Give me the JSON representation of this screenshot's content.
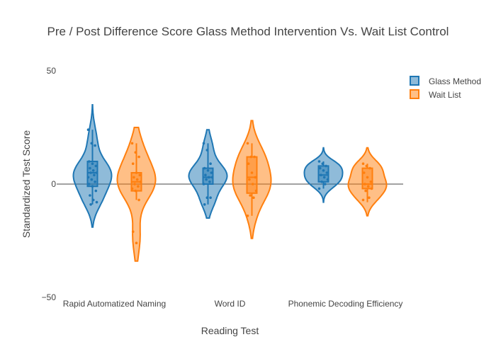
{
  "chart_data": {
    "type": "violin",
    "title": "Pre / Post Difference Score Glass Method Intervention Vs. Wait List Control",
    "xlabel": "Reading Test",
    "ylabel": "Standardized Test Score",
    "ylim": [
      -50,
      50
    ],
    "yticks": [
      50,
      0,
      -50
    ],
    "ytick_labels": [
      "50",
      "0",
      "−50"
    ],
    "categories": [
      "Rapid Automatized Naming",
      "Word ID",
      "Phonemic Decoding Efficiency"
    ],
    "legend_position": "top-right",
    "zero_line": true,
    "series": [
      {
        "name": "Glass Method",
        "color": "#1f77b4",
        "groups": [
          {
            "category": "Rapid Automatized Naming",
            "range": [
              -19,
              35
            ],
            "box": {
              "q1": -1,
              "median": 5,
              "q3": 10,
              "whisker_low": -9,
              "whisker_high": 24
            },
            "points": [
              24,
              18,
              17,
              10,
              9,
              8,
              7,
              6,
              5,
              5,
              4,
              3,
              2,
              1,
              0,
              -1,
              -3,
              -5,
              -7,
              -8,
              -9
            ]
          },
          {
            "category": "Word ID",
            "range": [
              -15,
              24
            ],
            "box": {
              "q1": 0,
              "median": 3,
              "q3": 7,
              "whisker_low": -9,
              "whisker_high": 18
            },
            "points": [
              18,
              15,
              9,
              7,
              6,
              5,
              4,
              3,
              3,
              2,
              1,
              0,
              -6,
              -6,
              -9
            ]
          },
          {
            "category": "Phonemic Decoding Efficiency",
            "range": [
              -8,
              16
            ],
            "box": {
              "q1": 1,
              "median": 4,
              "q3": 8,
              "whisker_low": -2,
              "whisker_high": 10
            },
            "points": [
              10,
              9,
              8,
              7,
              6,
              5,
              4,
              3,
              2,
              1,
              0,
              -2
            ]
          }
        ]
      },
      {
        "name": "Wait List",
        "color": "#ff7f0e",
        "groups": [
          {
            "category": "Rapid Automatized Naming",
            "range": [
              -34,
              25
            ],
            "box": {
              "q1": -3,
              "median": 1,
              "q3": 5,
              "whisker_low": -7,
              "whisker_high": 18
            },
            "points": [
              18,
              14,
              12,
              9,
              5,
              4,
              3,
              2,
              1,
              0,
              -1,
              -2,
              -3,
              -7,
              -21,
              -26
            ]
          },
          {
            "category": "Word ID",
            "range": [
              -24,
              28
            ],
            "box": {
              "q1": -4,
              "median": 3,
              "q3": 12,
              "whisker_low": -14,
              "whisker_high": 18
            },
            "points": [
              18,
              12,
              12,
              9,
              5,
              3,
              2,
              0,
              -3,
              -5,
              -6,
              -14
            ]
          },
          {
            "category": "Phonemic Decoding Efficiency",
            "range": [
              -14,
              16
            ],
            "box": {
              "q1": -2,
              "median": 0,
              "q3": 7,
              "whisker_low": -8,
              "whisker_high": 9
            },
            "points": [
              9,
              8,
              7,
              5,
              3,
              1,
              0,
              -1,
              -2,
              -3,
              -6,
              -7
            ]
          }
        ]
      }
    ]
  }
}
